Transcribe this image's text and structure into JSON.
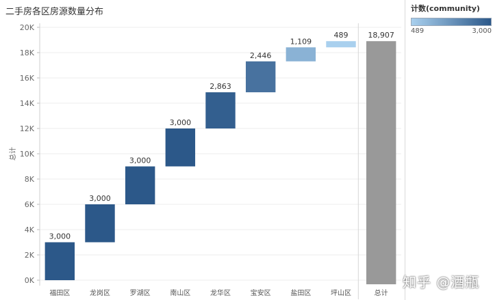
{
  "title": "二手房各区房源数量分布",
  "legend": {
    "title": "计数(community)",
    "min_label": "489",
    "max_label": "3,000",
    "color_low": "#a9d0ee",
    "color_high": "#2c5889"
  },
  "watermark": "知乎 @酒瓶",
  "chart_data": {
    "type": "waterfall",
    "title": "二手房各区房源数量分布",
    "ylabel": "总计",
    "xlabel": "",
    "ylim": [
      0,
      20000
    ],
    "yticks": [
      "0K",
      "2K",
      "4K",
      "6K",
      "8K",
      "10K",
      "12K",
      "14K",
      "16K",
      "18K",
      "20K"
    ],
    "grid": true,
    "categories": [
      "福田区",
      "龙岗区",
      "罗湖区",
      "南山区",
      "龙华区",
      "宝安区",
      "盐田区",
      "坪山区"
    ],
    "values": [
      3000,
      3000,
      3000,
      3000,
      2863,
      2446,
      1109,
      489
    ],
    "value_labels": [
      "3,000",
      "3,000",
      "3,000",
      "3,000",
      "2,863",
      "2,446",
      "1,109",
      "489"
    ],
    "total": {
      "label": "总计",
      "value": 18907,
      "value_label": "18,907",
      "color": "#999999"
    }
  }
}
